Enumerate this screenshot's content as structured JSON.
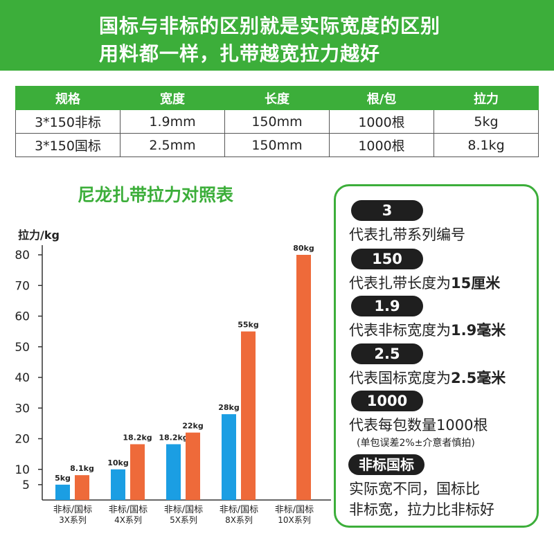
{
  "banner": {
    "line1": "国标与非标的区别就是实际宽度的区别",
    "line2": "用料都一样，扎带越宽拉力越好"
  },
  "spec_table": {
    "headers": [
      "规格",
      "宽度",
      "长度",
      "根/包",
      "拉力"
    ],
    "rows": [
      [
        "3*150非标",
        "1.9mm",
        "150mm",
        "1000根",
        "5kg"
      ],
      [
        "3*150国标",
        "2.5mm",
        "150mm",
        "1000根",
        "8.1kg"
      ]
    ]
  },
  "chart_data": {
    "type": "bar",
    "title": "尼龙扎带拉力对照表",
    "ylabel": "拉力/kg",
    "xlabel": "",
    "ylim": [
      0,
      80
    ],
    "yticks": [
      5,
      10,
      20,
      30,
      40,
      50,
      60,
      70,
      80
    ],
    "categories": [
      "非标/国标\n3X系列",
      "非标/国标\n4X系列",
      "非标/国标\n5X系列",
      "非标/国标\n8X系列",
      "非标/国标\n10X系列"
    ],
    "category_lines": [
      [
        "非标/国标",
        "3X系列"
      ],
      [
        "非标/国标",
        "4X系列"
      ],
      [
        "非标/国标",
        "5X系列"
      ],
      [
        "非标/国标",
        "8X系列"
      ],
      [
        "非标/国标",
        "10X系列"
      ]
    ],
    "series": [
      {
        "values": [
          5,
          10,
          18.2,
          28,
          null
        ],
        "labels": [
          "5kg",
          "10kg",
          "18.2kg",
          "28kg",
          ""
        ],
        "color": "#1b9ee3"
      },
      {
        "values": [
          8.1,
          18.2,
          22,
          55,
          80
        ],
        "labels": [
          "8.1kg",
          "18.2kg",
          "22kg",
          "55kg",
          "80kg"
        ],
        "color": "#ee6a3a"
      }
    ],
    "grid": false
  },
  "legend_panel": {
    "items": [
      {
        "tag": "3",
        "desc": "代表扎带系列编号",
        "bold": ""
      },
      {
        "tag": "150",
        "desc": "代表扎带长度为",
        "bold": "15厘米"
      },
      {
        "tag": "1.9",
        "desc": "代表非标宽度为",
        "bold": "1.9毫米"
      },
      {
        "tag": "2.5",
        "desc": "代表国标宽度为",
        "bold": "2.5毫米"
      },
      {
        "tag": "1000",
        "desc": "代表每包数量1000根",
        "bold": ""
      }
    ],
    "note": "(单包误差2%±介意者慎拍)",
    "final_tag": "非标国标",
    "final_line1": "实际宽不同，国标比",
    "final_line2": "非标宽，拉力比非标好"
  },
  "colors": {
    "brand_green": "#3cae3a",
    "non_standard_blue": "#1b9ee3",
    "standard_orange": "#ee6a3a"
  }
}
